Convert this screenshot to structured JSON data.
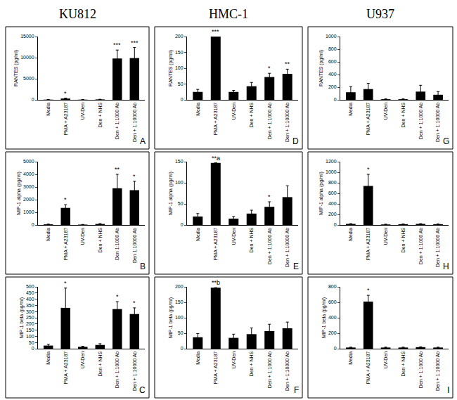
{
  "chart_data": [
    {
      "type": "bar",
      "title": "KU812",
      "panel_label": "A",
      "y_label": "RANTES (pg/ml)",
      "color": "#000000",
      "categories": [
        "Media",
        "PMA + A23187",
        "UV-Den",
        "Den + NHS",
        "Den + 1:1000 Ab",
        "Den + 1:10000 Ab"
      ],
      "values": [
        50,
        300,
        50,
        100,
        9800,
        9900
      ],
      "errors": [
        20,
        100,
        20,
        40,
        2000,
        2500
      ],
      "ylim": [
        0,
        15000
      ],
      "yticks": [
        0,
        5000,
        10000,
        15000
      ],
      "annotations": [
        {
          "category": "PMA + A23187",
          "text": "*"
        },
        {
          "category": "Den + 1:1000 Ab",
          "text": "***"
        },
        {
          "category": "Den + 1:10000 Ab",
          "text": "***"
        }
      ]
    },
    {
      "type": "bar",
      "panel_label": "B",
      "y_label": "MIP-1 alpha (pg/ml)",
      "color": "#000000",
      "categories": [
        "Media",
        "PMA + A23187",
        "UV-Den",
        "Den + NHS",
        "Den 1:1000 Ab",
        "Den 1:10000 Ab"
      ],
      "values": [
        50,
        1350,
        30,
        80,
        2900,
        2750
      ],
      "errors": [
        20,
        250,
        10,
        30,
        1100,
        700
      ],
      "ylim": [
        0,
        5000
      ],
      "yticks": [
        0,
        1000,
        2000,
        3000,
        4000,
        5000
      ],
      "annotations": [
        {
          "category": "PMA + A23187",
          "text": "*"
        },
        {
          "category": "Den 1:1000 Ab",
          "text": "**"
        },
        {
          "category": "Den 1:10000 Ab",
          "text": "*"
        }
      ]
    },
    {
      "type": "bar",
      "panel_label": "C",
      "y_label": "MIP-1 beta (pg/ml)",
      "color": "#000000",
      "categories": [
        "Media",
        "PMA + A23187",
        "UV-Den",
        "Den + NHS",
        "Den + 1:1000 Ab",
        "Den + 1:10000 Ab"
      ],
      "values": [
        25,
        330,
        15,
        30,
        320,
        280
      ],
      "errors": [
        10,
        160,
        5,
        10,
        60,
        50
      ],
      "ylim": [
        0,
        500
      ],
      "yticks": [
        0,
        50,
        100,
        150,
        200,
        250,
        300,
        350,
        400,
        450,
        500
      ],
      "annotations": [
        {
          "category": "PMA + A23187",
          "text": "*"
        },
        {
          "category": "Den + 1:1000 Ab",
          "text": "*"
        },
        {
          "category": "Den + 1:10000 Ab",
          "text": "*"
        }
      ]
    },
    {
      "type": "bar",
      "title": "HMC-1",
      "panel_label": "D",
      "y_label": "RANTES (pg/ml)",
      "color": "#000000",
      "categories": [
        "Media",
        "PMA + A23187",
        "UV-Den",
        "Den + NHS",
        "Den + 1:1000 Ab",
        "Den + 1:10000 Ab"
      ],
      "values": [
        25,
        200,
        25,
        43,
        72,
        82
      ],
      "errors": [
        8,
        0,
        5,
        12,
        12,
        15
      ],
      "ylim": [
        0,
        200
      ],
      "yticks": [
        0,
        50,
        100,
        150,
        200
      ],
      "annotations": [
        {
          "category": "PMA + A23187",
          "text": "***"
        },
        {
          "category": "Den + 1:1000 Ab",
          "text": "*"
        },
        {
          "category": "Den + 1:10000 Ab",
          "text": "**"
        }
      ]
    },
    {
      "type": "bar",
      "panel_label": "E",
      "y_label": "MIP-1 alpha (pg/ml)",
      "color": "#000000",
      "categories": [
        "Media",
        "PMA + A23187",
        "UV-Den",
        "Den + NHS",
        "Den + 1:1000 Ab",
        "Den + 1:10000 Ab"
      ],
      "values": [
        20,
        147,
        15,
        27,
        43,
        66
      ],
      "errors": [
        7,
        0,
        5,
        8,
        12,
        27
      ],
      "ylim": [
        0,
        150
      ],
      "yticks": [
        0,
        50,
        100,
        150
      ],
      "annotations": [
        {
          "category": "PMA + A23187",
          "text": "**a"
        },
        {
          "category": "Den + 1:1000 Ab",
          "text": "*"
        }
      ]
    },
    {
      "type": "bar",
      "panel_label": "F",
      "y_label": "MIP-1 beta (pg/ml)",
      "color": "#000000",
      "categories": [
        "Media",
        "PMA + A23187",
        "UV-Den",
        "Den + NHS",
        "Den + 1:1000 Ab",
        "Den + 1:10000 Ab"
      ],
      "values": [
        37,
        197,
        35,
        47,
        57,
        66
      ],
      "errors": [
        12,
        0,
        12,
        20,
        22,
        20
      ],
      "ylim": [
        0,
        200
      ],
      "yticks": [
        0,
        50,
        100,
        150,
        200
      ],
      "annotations": [
        {
          "category": "PMA + A23187",
          "text": "**b"
        }
      ]
    },
    {
      "type": "bar",
      "title": "U937",
      "panel_label": "G",
      "y_label": "RANTES (pg/ml)",
      "color": "#000000",
      "categories": [
        "Media",
        "PMA + A23187",
        "UV-Den",
        "Den + NHS",
        "Den + 1:1000 Ab",
        "Den + 1:10000 Ab"
      ],
      "values": [
        120,
        170,
        10,
        10,
        130,
        80
      ],
      "errors": [
        90,
        90,
        5,
        5,
        100,
        50
      ],
      "ylim": [
        0,
        1000
      ],
      "yticks": [
        0,
        200,
        400,
        600,
        800,
        1000
      ],
      "annotations": []
    },
    {
      "type": "bar",
      "panel_label": "H",
      "y_label": "MIP-1 alpha (pg/ml)",
      "color": "#000000",
      "categories": [
        "Media",
        "PMA + A23187",
        "UV-Den",
        "Den + NHS",
        "Den + 1:1000 Ab",
        "Den + 1:10000 Ab"
      ],
      "values": [
        20,
        740,
        10,
        15,
        20,
        15
      ],
      "errors": [
        5,
        220,
        5,
        5,
        5,
        5
      ],
      "ylim": [
        0,
        1200
      ],
      "yticks": [
        0,
        200,
        400,
        600,
        800,
        1000,
        1200
      ],
      "annotations": [
        {
          "category": "PMA + A23187",
          "text": "*"
        }
      ]
    },
    {
      "type": "bar",
      "panel_label": "I",
      "y_label": "MIP-1 beta (pg/ml)",
      "color": "#000000",
      "categories": [
        "Media",
        "PMA + A23187",
        "UV-Den",
        "Den + NHS",
        "Den + 1:1000 Ab",
        "Den + 1:10000 Ab"
      ],
      "values": [
        15,
        610,
        15,
        15,
        20,
        15
      ],
      "errors": [
        5,
        80,
        5,
        5,
        5,
        5
      ],
      "ylim": [
        0,
        800
      ],
      "yticks": [
        0,
        200,
        400,
        600,
        800
      ],
      "annotations": [
        {
          "category": "PMA + A23187",
          "text": "*"
        }
      ]
    }
  ]
}
